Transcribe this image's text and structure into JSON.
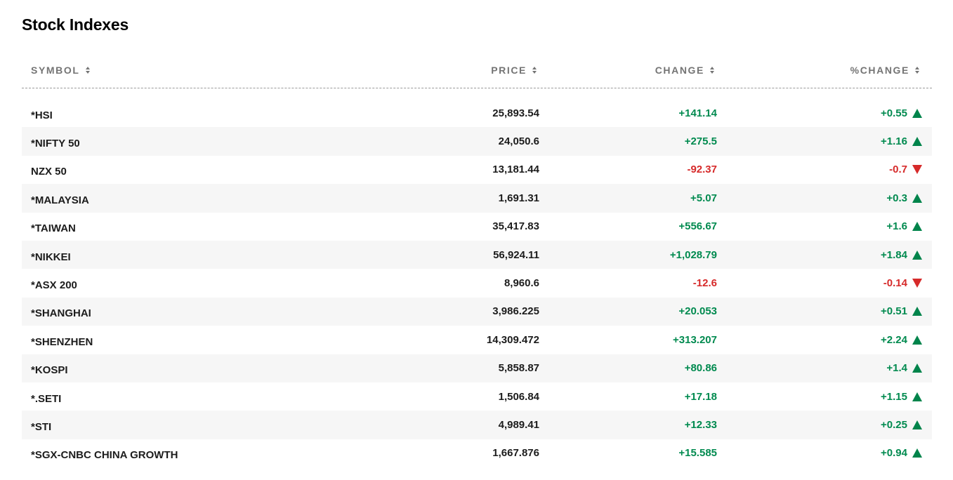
{
  "page": {
    "title": "Stock Indexes"
  },
  "table": {
    "columns": {
      "symbol": "SYMBOL",
      "price": "PRICE",
      "change": "CHANGE",
      "pct_change": "%CHANGE"
    },
    "rows": [
      {
        "symbol": "*HSI",
        "price": "25,893.54",
        "change": "+141.14",
        "pct": "+0.55",
        "direction": "up"
      },
      {
        "symbol": "*NIFTY 50",
        "price": "24,050.6",
        "change": "+275.5",
        "pct": "+1.16",
        "direction": "up"
      },
      {
        "symbol": "NZX 50",
        "price": "13,181.44",
        "change": "-92.37",
        "pct": "-0.7",
        "direction": "down"
      },
      {
        "symbol": "*MALAYSIA",
        "price": "1,691.31",
        "change": "+5.07",
        "pct": "+0.3",
        "direction": "up"
      },
      {
        "symbol": "*TAIWAN",
        "price": "35,417.83",
        "change": "+556.67",
        "pct": "+1.6",
        "direction": "up"
      },
      {
        "symbol": "*NIKKEI",
        "price": "56,924.11",
        "change": "+1,028.79",
        "pct": "+1.84",
        "direction": "up"
      },
      {
        "symbol": "*ASX 200",
        "price": "8,960.6",
        "change": "-12.6",
        "pct": "-0.14",
        "direction": "down"
      },
      {
        "symbol": "*SHANGHAI",
        "price": "3,986.225",
        "change": "+20.053",
        "pct": "+0.51",
        "direction": "up"
      },
      {
        "symbol": "*SHENZHEN",
        "price": "14,309.472",
        "change": "+313.207",
        "pct": "+2.24",
        "direction": "up"
      },
      {
        "symbol": "*KOSPI",
        "price": "5,858.87",
        "change": "+80.86",
        "pct": "+1.4",
        "direction": "up"
      },
      {
        "symbol": "*.SETI",
        "price": "1,506.84",
        "change": "+17.18",
        "pct": "+1.15",
        "direction": "up"
      },
      {
        "symbol": "*STI",
        "price": "4,989.41",
        "change": "+12.33",
        "pct": "+0.25",
        "direction": "up"
      },
      {
        "symbol": "*SGX-CNBC CHINA GROWTH",
        "price": "1,667.876",
        "change": "+15.585",
        "pct": "+0.94",
        "direction": "up"
      }
    ]
  },
  "colors": {
    "positive": "#008a4f",
    "negative": "#d62a2a",
    "header_text": "#747474",
    "stripe": "#f6f6f6"
  },
  "icons": {
    "up": "triangle-up-icon",
    "down": "triangle-down-icon",
    "sort": "sort-arrows-icon"
  }
}
